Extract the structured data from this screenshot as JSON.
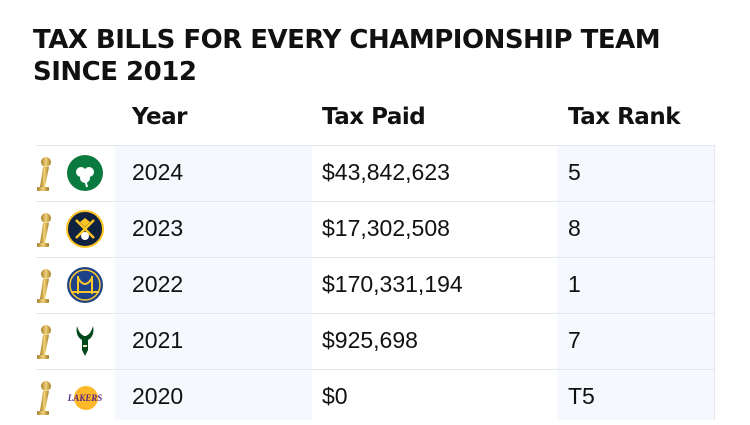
{
  "title": "Tax bills for every championship team since  2012",
  "chart_data": {
    "type": "table",
    "title": "Tax bills for every championship team since  2012",
    "columns": [
      "Year",
      "Tax Paid",
      "Tax Rank"
    ],
    "rows": [
      {
        "team_logo": "celtics-logo-icon",
        "trophy": "trophy-icon",
        "year": "2024",
        "tax_paid": "$43,842,623",
        "tax_rank": "5"
      },
      {
        "team_logo": "nuggets-logo-icon",
        "trophy": "trophy-icon",
        "year": "2023",
        "tax_paid": "$17,302,508",
        "tax_rank": "8"
      },
      {
        "team_logo": "warriors-logo-icon",
        "trophy": "trophy-icon",
        "year": "2022",
        "tax_paid": "$170,331,194",
        "tax_rank": "1"
      },
      {
        "team_logo": "bucks-logo-icon",
        "trophy": "trophy-icon",
        "year": "2021",
        "tax_paid": "$925,698",
        "tax_rank": "7"
      },
      {
        "team_logo": "lakers-logo-icon",
        "trophy": "trophy-icon",
        "year": "2020",
        "tax_paid": "$0",
        "tax_rank": "T5",
        "logo_text": "LAKERS"
      }
    ]
  },
  "colors": {
    "shade": "#f5f8fd",
    "rule": "#e4e7ee",
    "text": "#111111",
    "trophy": "#d4ae4a"
  }
}
